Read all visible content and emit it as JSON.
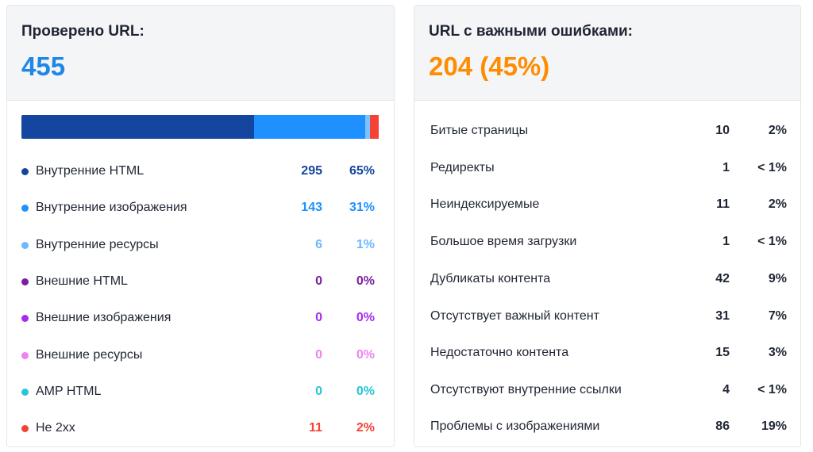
{
  "checked": {
    "title": "Проверено URL:",
    "value": "455",
    "value_color": "#1e88e5",
    "bar": [
      {
        "fraction": 0.65,
        "color": "#1446a0"
      },
      {
        "fraction": 0.31,
        "color": "#1e90ff"
      },
      {
        "fraction": 0.013,
        "color": "#7cc2ff"
      },
      {
        "fraction": 0.024,
        "color": "#f44336"
      }
    ],
    "rows": [
      {
        "label": "Внутренние HTML",
        "count": "295",
        "pct": "65%",
        "color": "#1446a0"
      },
      {
        "label": "Внутренние изображения",
        "count": "143",
        "pct": "31%",
        "color": "#1e90ff"
      },
      {
        "label": "Внутренние ресурсы",
        "count": "6",
        "pct": "1%",
        "color": "#6db8ff"
      },
      {
        "label": "Внешние HTML",
        "count": "0",
        "pct": "0%",
        "color": "#7b1fa2"
      },
      {
        "label": "Внешние изображения",
        "count": "0",
        "pct": "0%",
        "color": "#a72af0"
      },
      {
        "label": "Внешние ресурсы",
        "count": "0",
        "pct": "0%",
        "color": "#ee82ee"
      },
      {
        "label": "AMP HTML",
        "count": "0",
        "pct": "0%",
        "color": "#26c6da"
      },
      {
        "label": "Не 2xx",
        "count": "11",
        "pct": "2%",
        "color": "#f44336"
      }
    ]
  },
  "errors": {
    "title": "URL с важными ошибками:",
    "value": "204 (45%)",
    "value_color": "#ff8c00",
    "rows": [
      {
        "label": "Битые страницы",
        "count": "10",
        "pct": "2%"
      },
      {
        "label": "Редиректы",
        "count": "1",
        "pct": "< 1%"
      },
      {
        "label": "Неиндексируемые",
        "count": "11",
        "pct": "2%"
      },
      {
        "label": "Большое время загрузки",
        "count": "1",
        "pct": "< 1%"
      },
      {
        "label": "Дубликаты контента",
        "count": "42",
        "pct": "9%"
      },
      {
        "label": "Отсутствует важный контент",
        "count": "31",
        "pct": "7%"
      },
      {
        "label": "Недостаточно контента",
        "count": "15",
        "pct": "3%"
      },
      {
        "label": "Отсутствуют внутренние ссылки",
        "count": "4",
        "pct": "< 1%"
      },
      {
        "label": "Проблемы с изображениями",
        "count": "86",
        "pct": "19%"
      }
    ]
  }
}
